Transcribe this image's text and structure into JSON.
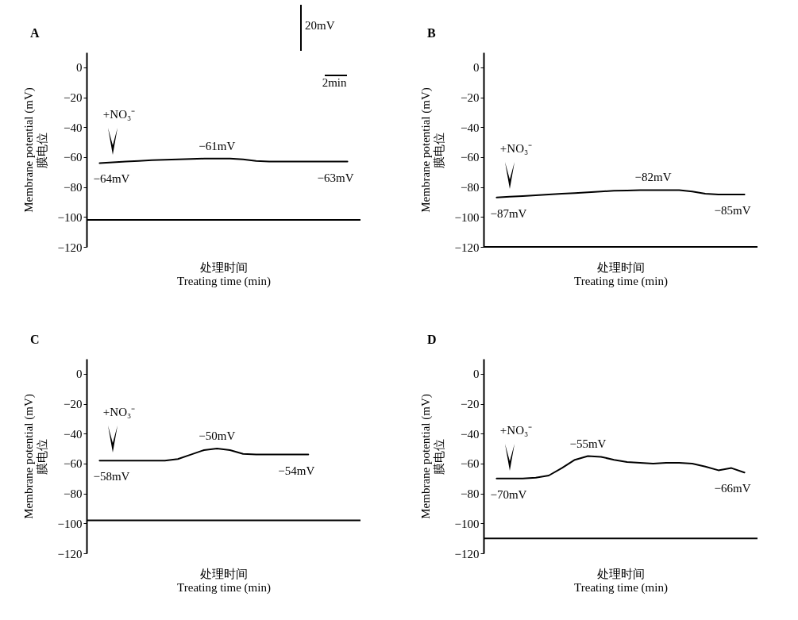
{
  "chart_data": [
    {
      "type": "line",
      "title": "A",
      "xlabel": "处理时间\nTreating time (min)",
      "ylabel": "Membrane potential (mV)\n膜电位",
      "categories": [
        null,
        null,
        null,
        null,
        null,
        null,
        null,
        null,
        null,
        null,
        null,
        null,
        null,
        null,
        null,
        null,
        null,
        null,
        null,
        null
      ],
      "ylim": [
        -120,
        10
      ],
      "yticks": [
        0,
        -20,
        -40,
        -60,
        -80,
        -100,
        -120
      ],
      "tick_labels": "y",
      "series": [
        {
          "color": "#000000",
          "values": [
            -64,
            -63.5,
            -63,
            -62.5,
            -62,
            -61.8,
            -61.5,
            -61.3,
            -61,
            -61,
            -61,
            -61.5,
            -62.5,
            -63,
            -63,
            -63,
            -63,
            -63,
            -63,
            -63
          ],
          "value_labels": [
            "−64mV",
            null,
            null,
            null,
            null,
            null,
            null,
            null,
            null,
            "−61mV",
            null,
            null,
            null,
            null,
            null,
            null,
            null,
            null,
            null,
            "−63mV"
          ]
        }
      ],
      "ref_lines": [
        {
          "axis": "y",
          "value": -102
        }
      ],
      "annotations": [
        "+NO₃⁻",
        "20mV",
        "2min"
      ]
    },
    {
      "type": "line",
      "title": "B",
      "xlabel": "处理时间\nTreating time (min)",
      "ylabel": "Membrane potential (mV)\n膜电位",
      "categories": [
        null,
        null,
        null,
        null,
        null,
        null,
        null,
        null,
        null,
        null,
        null,
        null,
        null,
        null,
        null,
        null,
        null,
        null,
        null,
        null
      ],
      "ylim": [
        -120,
        10
      ],
      "yticks": [
        0,
        -20,
        -40,
        -60,
        -80,
        -100,
        -120
      ],
      "tick_labels": "y",
      "series": [
        {
          "color": "#000000",
          "values": [
            -87,
            -86.5,
            -86,
            -85.5,
            -85,
            -84.5,
            -84,
            -83.5,
            -83,
            -82.5,
            -82.3,
            -82,
            -82,
            -82,
            -82,
            -83,
            -84.5,
            -85,
            -85,
            -85
          ],
          "value_labels": [
            "−87mV",
            null,
            null,
            null,
            null,
            null,
            null,
            null,
            null,
            null,
            null,
            null,
            "−82mV",
            null,
            null,
            null,
            null,
            null,
            null,
            "−85mV"
          ]
        }
      ],
      "ref_lines": [
        {
          "axis": "y",
          "value": -120
        }
      ],
      "annotations": [
        "+NO₃⁻"
      ]
    },
    {
      "type": "line",
      "title": "C",
      "xlabel": "处理时间\nTreating time (min)",
      "ylabel": "Membrane potential (mV)\n膜电位",
      "categories": [
        null,
        null,
        null,
        null,
        null,
        null,
        null,
        null,
        null,
        null,
        null,
        null,
        null,
        null,
        null,
        null,
        null,
        null,
        null,
        null
      ],
      "ylim": [
        -120,
        10
      ],
      "yticks": [
        0,
        -20,
        -40,
        -60,
        -80,
        -100,
        -120
      ],
      "tick_labels": "y",
      "series": [
        {
          "color": "#000000",
          "values": [
            -58,
            -58,
            -58,
            -58,
            -58,
            -58,
            -57,
            -54,
            -51,
            -50,
            -51,
            -53.5,
            -54,
            -54,
            -54,
            -54,
            -54,
            null,
            null,
            null
          ],
          "value_labels": [
            "−58mV",
            null,
            null,
            null,
            null,
            null,
            null,
            null,
            null,
            "−50mV",
            null,
            null,
            null,
            null,
            null,
            null,
            "−54mV",
            null,
            null,
            null
          ]
        }
      ],
      "ref_lines": [
        {
          "axis": "y",
          "value": -98
        }
      ],
      "annotations": [
        "+NO₃⁻"
      ]
    },
    {
      "type": "line",
      "title": "D",
      "xlabel": "处理时间\nTreating time (min)",
      "ylabel": "Membrane potential (mV)\n膜电位",
      "categories": [
        null,
        null,
        null,
        null,
        null,
        null,
        null,
        null,
        null,
        null,
        null,
        null,
        null,
        null,
        null,
        null,
        null,
        null,
        null,
        null
      ],
      "ylim": [
        -120,
        10
      ],
      "yticks": [
        0,
        -20,
        -40,
        -60,
        -80,
        -100,
        -120
      ],
      "tick_labels": "y",
      "series": [
        {
          "color": "#000000",
          "values": [
            -70,
            -70,
            -70,
            -69.5,
            -68,
            -63,
            -57.5,
            -55,
            -55.5,
            -57.5,
            -59,
            -59.5,
            -60,
            -59.5,
            -59.5,
            -60,
            -62,
            -64.5,
            -63,
            -66
          ],
          "value_labels": [
            "−70mV",
            null,
            null,
            null,
            null,
            null,
            null,
            "−55mV",
            null,
            null,
            null,
            null,
            null,
            null,
            null,
            null,
            null,
            null,
            null,
            "−66mV"
          ]
        }
      ],
      "ref_lines": [
        {
          "axis": "y",
          "value": -110
        }
      ],
      "annotations": [
        "+NO₃⁻"
      ]
    }
  ]
}
